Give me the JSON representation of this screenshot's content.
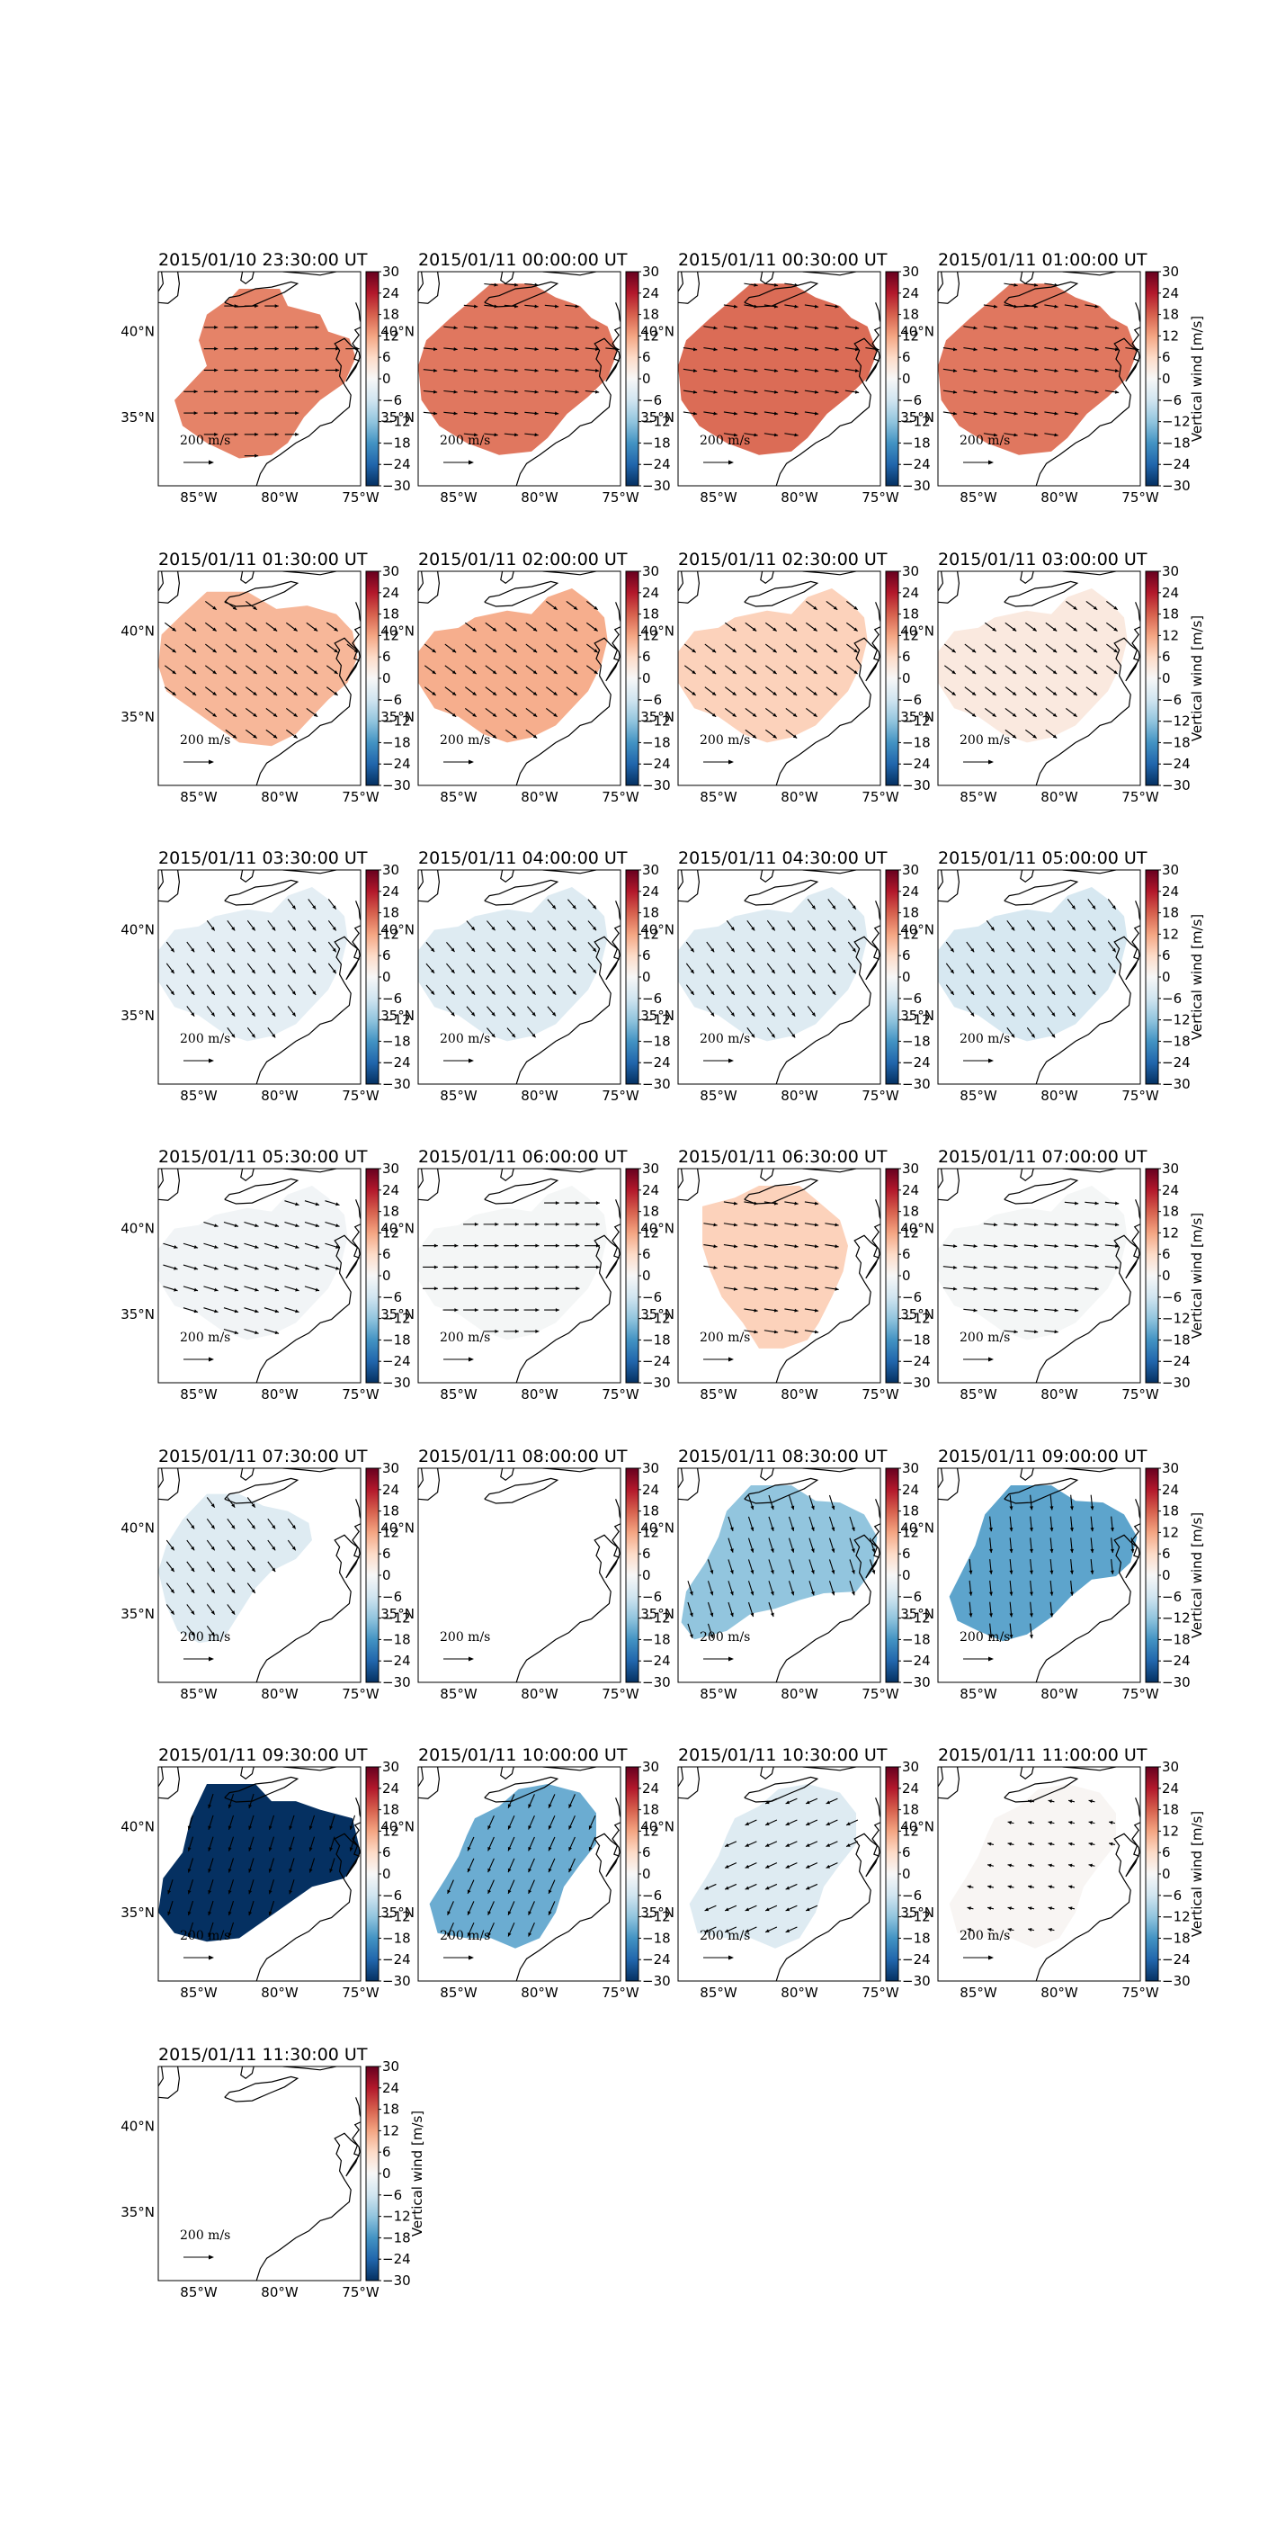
{
  "figure": {
    "colorbar": {
      "ticks": [
        30,
        24,
        18,
        12,
        6,
        0,
        -6,
        -12,
        -18,
        -24,
        -30
      ],
      "label": "Vertical wind [m/s]",
      "range": [
        -30,
        30
      ],
      "colormap": "RdBu_r"
    },
    "map_axes": {
      "lat_ticks": [
        "40°N",
        "35°N"
      ],
      "lon_ticks": [
        "85°W",
        "80°W",
        "75°W"
      ],
      "lat_values": [
        40,
        35
      ],
      "lon_values": [
        -85,
        -80,
        -75
      ],
      "extent": {
        "lon": [
          -87.5,
          -75
        ],
        "lat": [
          31,
          43.5
        ]
      }
    },
    "quiver_scale_label": "200 m/s"
  },
  "chart_data": [
    {
      "type": "heatmap",
      "title": "2015/01/10 23:30:00 UT",
      "value": 15,
      "shape": "A",
      "arrow_dir": [
        1.0,
        0.0
      ],
      "arrow_len": 0.55
    },
    {
      "type": "heatmap",
      "title": "2015/01/11 00:00:00 UT",
      "value": 16,
      "shape": "B",
      "arrow_dir": [
        1.0,
        0.1
      ],
      "arrow_len": 0.55
    },
    {
      "type": "heatmap",
      "title": "2015/01/11 00:30:00 UT",
      "value": 17,
      "shape": "B",
      "arrow_dir": [
        1.0,
        0.15
      ],
      "arrow_len": 0.55
    },
    {
      "type": "heatmap",
      "title": "2015/01/11 01:00:00 UT",
      "value": 16,
      "shape": "B",
      "arrow_dir": [
        1.0,
        0.15
      ],
      "arrow_len": 0.55
    },
    {
      "type": "heatmap",
      "title": "2015/01/11 01:30:00 UT",
      "value": 10,
      "shape": "C",
      "arrow_dir": [
        0.8,
        0.6
      ],
      "arrow_len": 0.55
    },
    {
      "type": "heatmap",
      "title": "2015/01/11 02:00:00 UT",
      "value": 11,
      "shape": "D",
      "arrow_dir": [
        0.8,
        0.6
      ],
      "arrow_len": 0.55
    },
    {
      "type": "heatmap",
      "title": "2015/01/11 02:30:00 UT",
      "value": 7,
      "shape": "D",
      "arrow_dir": [
        0.8,
        0.6
      ],
      "arrow_len": 0.55
    },
    {
      "type": "heatmap",
      "title": "2015/01/11 03:00:00 UT",
      "value": 3,
      "shape": "D",
      "arrow_dir": [
        0.8,
        0.6
      ],
      "arrow_len": 0.55
    },
    {
      "type": "heatmap",
      "title": "2015/01/11 03:30:00 UT",
      "value": -3,
      "shape": "D",
      "arrow_dir": [
        0.6,
        0.8
      ],
      "arrow_len": 0.5
    },
    {
      "type": "heatmap",
      "title": "2015/01/11 04:00:00 UT",
      "value": -4,
      "shape": "D",
      "arrow_dir": [
        0.65,
        0.76
      ],
      "arrow_len": 0.5
    },
    {
      "type": "heatmap",
      "title": "2015/01/11 04:30:00 UT",
      "value": -4,
      "shape": "D",
      "arrow_dir": [
        0.6,
        0.8
      ],
      "arrow_len": 0.5
    },
    {
      "type": "heatmap",
      "title": "2015/01/11 05:00:00 UT",
      "value": -5,
      "shape": "D",
      "arrow_dir": [
        0.6,
        0.8
      ],
      "arrow_len": 0.5
    },
    {
      "type": "heatmap",
      "title": "2015/01/11 05:30:00 UT",
      "value": -1,
      "shape": "D",
      "arrow_dir": [
        1.0,
        0.3
      ],
      "arrow_len": 0.6
    },
    {
      "type": "heatmap",
      "title": "2015/01/11 06:00:00 UT",
      "value": -0.5,
      "shape": "D",
      "arrow_dir": [
        1.0,
        0.0
      ],
      "arrow_len": 0.6
    },
    {
      "type": "heatmap",
      "title": "2015/01/11 06:30:00 UT",
      "value": 7,
      "shape": "E",
      "arrow_dir": [
        1.0,
        0.15
      ],
      "arrow_len": 0.55
    },
    {
      "type": "heatmap",
      "title": "2015/01/11 07:00:00 UT",
      "value": -0.5,
      "shape": "D",
      "arrow_dir": [
        1.0,
        0.1
      ],
      "arrow_len": 0.55
    },
    {
      "type": "heatmap",
      "title": "2015/01/11 07:30:00 UT",
      "value": -4,
      "shape": "F",
      "arrow_dir": [
        0.6,
        0.8
      ],
      "arrow_len": 0.5
    },
    {
      "type": "heatmap",
      "title": "2015/01/11 08:00:00 UT",
      "value": null,
      "shape": "none",
      "arrow_dir": [
        0,
        0
      ],
      "arrow_len": 0
    },
    {
      "type": "heatmap",
      "title": "2015/01/11 08:30:00 UT",
      "value": -12,
      "shape": "G",
      "arrow_dir": [
        0.3,
        0.95
      ],
      "arrow_len": 0.6
    },
    {
      "type": "heatmap",
      "title": "2015/01/11 09:00:00 UT",
      "value": -16,
      "shape": "H",
      "arrow_dir": [
        0.1,
        1.0
      ],
      "arrow_len": 0.6
    },
    {
      "type": "heatmap",
      "title": "2015/01/11 09:30:00 UT",
      "value": -30,
      "shape": "I",
      "arrow_dir": [
        -0.3,
        0.95
      ],
      "arrow_len": 0.6
    },
    {
      "type": "heatmap",
      "title": "2015/01/11 10:00:00 UT",
      "value": -15,
      "shape": "J",
      "arrow_dir": [
        -0.4,
        0.9
      ],
      "arrow_len": 0.6
    },
    {
      "type": "heatmap",
      "title": "2015/01/11 10:30:00 UT",
      "value": -4,
      "shape": "J",
      "arrow_dir": [
        -0.9,
        0.4
      ],
      "arrow_len": 0.5
    },
    {
      "type": "heatmap",
      "title": "2015/01/11 11:00:00 UT",
      "value": 0.5,
      "shape": "J",
      "arrow_dir": [
        -0.9,
        -0.2
      ],
      "arrow_len": 0.25
    },
    {
      "type": "heatmap",
      "title": "2015/01/11 11:30:00 UT",
      "value": null,
      "shape": "none",
      "arrow_dir": [
        0,
        0
      ],
      "arrow_len": 0
    }
  ]
}
